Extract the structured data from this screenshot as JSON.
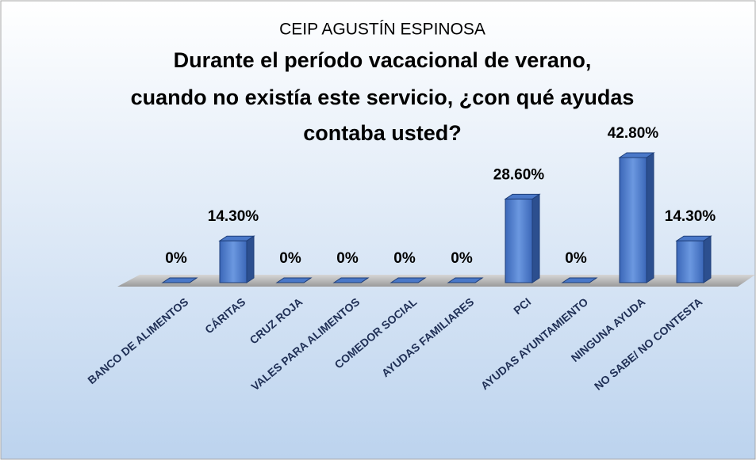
{
  "chart_data": {
    "type": "bar3d",
    "subtitle": "CEIP AGUSTÍN ESPINOSA",
    "title": [
      "Durante el período vacacional de verano,",
      "cuando no existía este servicio, ¿con qué ayudas",
      "contaba usted?"
    ],
    "categories": [
      "BANCO DE ALIMENTOS",
      "CÁRITAS",
      "CRUZ ROJA",
      "VALES PARA ALIMENTOS",
      "COMEDOR SOCIAL",
      "AYUDAS FAMILIARES",
      "PCI",
      "AYUDAS AYUNTAMIENTO",
      "NINGUNA AYUDA",
      "NO SABE/ NO CONTESTA"
    ],
    "values": [
      0,
      14.3,
      0,
      0,
      0,
      0,
      28.6,
      0,
      42.8,
      14.3
    ],
    "value_labels": [
      "0%",
      "14.30%",
      "0%",
      "0%",
      "0%",
      "0%",
      "28.60%",
      "0%",
      "42.80%",
      "14.30%"
    ],
    "color": "#4472c4"
  }
}
